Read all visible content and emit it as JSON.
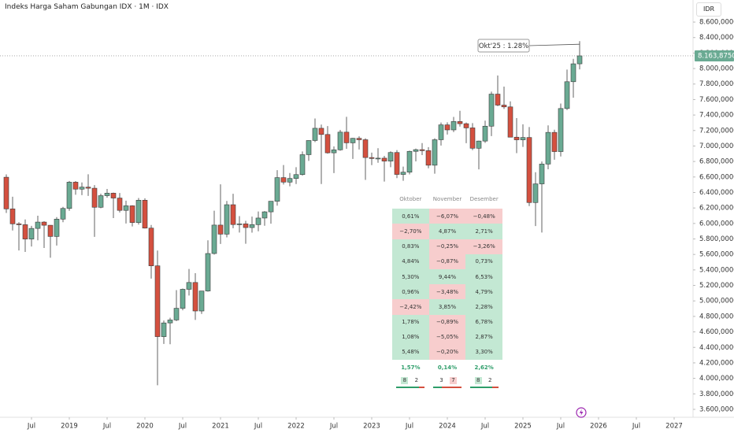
{
  "chart_data": {
    "type": "candlestick",
    "title": "Indeks Harga Saham Gabungan IDX · 1M · IDX",
    "currency": "IDR",
    "annotation": "Okt'25 : 1.28%",
    "up_color": "#6aaa93",
    "down_color": "#d4503f",
    "x": [
      "2018-03",
      "2018-04",
      "2018-05",
      "2018-06",
      "2018-07",
      "2018-08",
      "2018-09",
      "2018-10",
      "2018-11",
      "2018-12",
      "2019-01",
      "2019-02",
      "2019-03",
      "2019-04",
      "2019-05",
      "2019-06",
      "2019-07",
      "2019-08",
      "2019-09",
      "2019-10",
      "2019-11",
      "2019-12",
      "2020-01",
      "2020-02",
      "2020-03",
      "2020-04",
      "2020-05",
      "2020-06",
      "2020-07",
      "2020-08",
      "2020-09",
      "2020-10",
      "2020-11",
      "2020-12",
      "2021-01",
      "2021-02",
      "2021-03",
      "2021-04",
      "2021-05",
      "2021-06",
      "2021-07",
      "2021-08",
      "2021-09",
      "2021-10",
      "2021-11",
      "2021-12",
      "2022-01",
      "2022-02",
      "2022-03",
      "2022-04",
      "2022-05",
      "2022-06",
      "2022-07",
      "2022-08",
      "2022-09",
      "2022-10",
      "2022-11",
      "2022-12",
      "2023-01",
      "2023-02",
      "2023-03",
      "2023-04",
      "2023-05",
      "2023-06",
      "2023-07",
      "2023-08",
      "2023-09",
      "2023-10",
      "2023-11",
      "2023-12",
      "2024-01",
      "2024-02",
      "2024-03",
      "2024-04",
      "2024-05",
      "2024-06",
      "2024-07",
      "2024-08",
      "2024-09",
      "2024-10",
      "2024-11",
      "2024-12",
      "2025-01",
      "2025-02",
      "2025-03",
      "2025-04",
      "2025-05",
      "2025-06",
      "2025-07",
      "2025-08",
      "2025-09",
      "2025-10"
    ],
    "open": [
      6597,
      6188,
      5995,
      5984,
      5799,
      5936,
      6018,
      5977,
      5832,
      6056,
      6194,
      6533,
      6443,
      6469,
      6455,
      6209,
      6359,
      6391,
      6328,
      6169,
      6228,
      6012,
      6300,
      5940,
      5453,
      4539,
      4716,
      4754,
      4905,
      5150,
      5238,
      4870,
      5128,
      5612,
      5979,
      5862,
      6242,
      5986,
      5995,
      5947,
      5985,
      6070,
      6150,
      6287,
      6592,
      6534,
      6581,
      6631,
      6888,
      7071,
      7229,
      7149,
      6912,
      6951,
      7179,
      7041,
      7099,
      7081,
      6851,
      6839,
      6843,
      6805,
      6916,
      6633,
      6662,
      6931,
      6953,
      6940,
      6752,
      7081,
      7273,
      7208,
      7316,
      7288,
      7234,
      6971,
      7064,
      7256,
      7670,
      7528,
      7505,
      7114,
      7080,
      7110,
      6270,
      6511,
      6767,
      7176,
      6928,
      7484,
      7830,
      8061
    ],
    "high": [
      6634,
      6345,
      6018,
      6052,
      5969,
      6100,
      6029,
      5979,
      6082,
      6214,
      6548,
      6547,
      6530,
      6635,
      6495,
      6384,
      6446,
      6399,
      6393,
      6295,
      6235,
      6329,
      6325,
      5980,
      5650,
      4747,
      4782,
      5139,
      5160,
      5413,
      5358,
      5128,
      5783,
      6165,
      6505,
      6290,
      6383,
      6095,
      6034,
      6089,
      6155,
      6160,
      6287,
      6688,
      6754,
      6652,
      6726,
      6930,
      7073,
      7355,
      7276,
      7258,
      6994,
      7208,
      7377,
      7105,
      7125,
      7100,
      6914,
      6971,
      6873,
      6931,
      6948,
      6734,
      6940,
      6967,
      7038,
      6985,
      7100,
      7303,
      7306,
      7376,
      7454,
      7303,
      7296,
      7069,
      7327,
      7702,
      7910,
      7767,
      7576,
      7360,
      7280,
      7245,
      6662,
      6800,
      7266,
      7210,
      7548,
      7987,
      8125,
      8354
    ],
    "low": [
      6136,
      5909,
      5652,
      5633,
      5702,
      5782,
      5683,
      5558,
      5715,
      6016,
      6163,
      6371,
      6366,
      6356,
      5827,
      6196,
      6333,
      6069,
      6142,
      6000,
      5961,
      5986,
      5935,
      5288,
      3911,
      4445,
      4441,
      4739,
      4879,
      5069,
      4754,
      4832,
      5119,
      5598,
      5735,
      5821,
      5939,
      5883,
      5738,
      5882,
      5899,
      5971,
      5997,
      6229,
      6503,
      6480,
      6509,
      6619,
      6808,
      7050,
      6509,
      6902,
      6650,
      6940,
      6964,
      6833,
      6955,
      6562,
      6753,
      6784,
      6541,
      6726,
      6585,
      6551,
      6634,
      6801,
      6883,
      6713,
      6643,
      7006,
      7148,
      7180,
      7251,
      7036,
      6946,
      6698,
      7040,
      7128,
      7514,
      7478,
      7111,
      6908,
      6988,
      6224,
      5967,
      5883,
      6700,
      6823,
      6865,
      7464,
      7623,
      7989
    ],
    "close": [
      6188,
      5995,
      5984,
      5799,
      5936,
      6018,
      5977,
      5832,
      6056,
      6194,
      6533,
      6443,
      6469,
      6455,
      6209,
      6359,
      6391,
      6328,
      6169,
      6228,
      6012,
      6300,
      5940,
      5453,
      4539,
      4716,
      4754,
      4905,
      5150,
      5238,
      4870,
      5128,
      5612,
      5979,
      5862,
      6242,
      5986,
      5995,
      5947,
      5985,
      6070,
      6150,
      6287,
      6592,
      6534,
      6581,
      6631,
      6888,
      7071,
      7229,
      7149,
      6912,
      6951,
      7179,
      7041,
      7099,
      7081,
      6851,
      6839,
      6843,
      6805,
      6916,
      6633,
      6662,
      6931,
      6953,
      6940,
      6752,
      7081,
      7273,
      7208,
      7316,
      7288,
      7234,
      6971,
      7064,
      7256,
      7670,
      7528,
      7505,
      7114,
      7080,
      7110,
      6270,
      6511,
      6767,
      7176,
      6928,
      7484,
      7830,
      8061,
      8163.875
    ],
    "last_value": {
      "value": 8163.875,
      "label": "8.163,8750"
    },
    "xlim": [
      "2018-02",
      "2027-04"
    ],
    "xticks": [
      {
        "value": "2018-07",
        "label": "Jul"
      },
      {
        "value": "2019-01",
        "label": "2019"
      },
      {
        "value": "2019-07",
        "label": "Jul"
      },
      {
        "value": "2020-01",
        "label": "2020"
      },
      {
        "value": "2020-07",
        "label": "Jul"
      },
      {
        "value": "2021-01",
        "label": "2021"
      },
      {
        "value": "2021-07",
        "label": "Jul"
      },
      {
        "value": "2022-01",
        "label": "2022"
      },
      {
        "value": "2022-07",
        "label": "Jul"
      },
      {
        "value": "2023-01",
        "label": "2023"
      },
      {
        "value": "2023-07",
        "label": "Jul"
      },
      {
        "value": "2024-01",
        "label": "2024"
      },
      {
        "value": "2024-07",
        "label": "Jul"
      },
      {
        "value": "2025-01",
        "label": "2025"
      },
      {
        "value": "2025-07",
        "label": "Jul"
      },
      {
        "value": "2026-01",
        "label": "2026"
      },
      {
        "value": "2026-07",
        "label": "Jul"
      },
      {
        "value": "2027-01",
        "label": "2027"
      }
    ],
    "ylim": [
      3498,
      8885
    ],
    "yticks": [
      {
        "value": 3600,
        "label": "3.600,0000"
      },
      {
        "value": 3800,
        "label": "3.800,0000"
      },
      {
        "value": 4000,
        "label": "4.000,0000"
      },
      {
        "value": 4200,
        "label": "4.200,0000"
      },
      {
        "value": 4400,
        "label": "4.400,0000"
      },
      {
        "value": 4600,
        "label": "4.600,0000"
      },
      {
        "value": 4800,
        "label": "4.800,0000"
      },
      {
        "value": 5000,
        "label": "5.000,0000"
      },
      {
        "value": 5200,
        "label": "5.200,0000"
      },
      {
        "value": 5400,
        "label": "5.400,0000"
      },
      {
        "value": 5600,
        "label": "5.600,0000"
      },
      {
        "value": 5800,
        "label": "5.800,0000"
      },
      {
        "value": 6000,
        "label": "6.000,0000"
      },
      {
        "value": 6200,
        "label": "6.200,0000"
      },
      {
        "value": 6400,
        "label": "6.400,0000"
      },
      {
        "value": 6600,
        "label": "6.600,0000"
      },
      {
        "value": 6800,
        "label": "6.800,0000"
      },
      {
        "value": 7000,
        "label": "7.000,0000"
      },
      {
        "value": 7200,
        "label": "7.200,0000"
      },
      {
        "value": 7400,
        "label": "7.400,0000"
      },
      {
        "value": 7600,
        "label": "7.600,0000"
      },
      {
        "value": 7800,
        "label": "7.800,0000"
      },
      {
        "value": 8000,
        "label": "8.000,0000"
      },
      {
        "value": 8200,
        "label": "8.200,0000"
      },
      {
        "value": 8400,
        "label": "8.400,0000"
      },
      {
        "value": 8600,
        "label": "8.600,0000"
      }
    ],
    "grid": false
  },
  "seasonals": {
    "columns": [
      "Oktober",
      "November",
      "Desember"
    ],
    "rows": [
      [
        "0,61%",
        "−6,07%",
        "−0,48%"
      ],
      [
        "−2,70%",
        "4,87%",
        "2,71%"
      ],
      [
        "0,83%",
        "−0,25%",
        "−3,26%"
      ],
      [
        "4,84%",
        "−0,87%",
        "0,73%"
      ],
      [
        "5,30%",
        "9,44%",
        "6,53%"
      ],
      [
        "0,96%",
        "−3,48%",
        "4,79%"
      ],
      [
        "−2,42%",
        "3,85%",
        "2,28%"
      ],
      [
        "1,78%",
        "−0,89%",
        "6,78%"
      ],
      [
        "1,08%",
        "−5,05%",
        "2,87%"
      ],
      [
        "5,48%",
        "−0,20%",
        "3,30%"
      ]
    ],
    "averages": [
      "1,57%",
      "0,14%",
      "2,62%"
    ],
    "counts": [
      {
        "up": 8,
        "down": 2
      },
      {
        "up": 3,
        "down": 7
      },
      {
        "up": 8,
        "down": 2
      }
    ]
  }
}
